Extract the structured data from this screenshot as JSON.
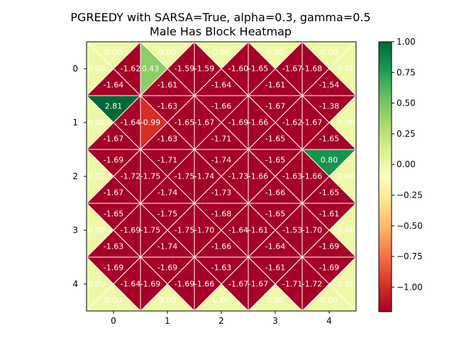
{
  "chart_data": {
    "type": "heatmap",
    "title_line1": "PGREEDY with SARSA=True, alpha=0.3, gamma=0.5",
    "title_line2": "Male Has Block Heatmap",
    "x_ticks": [
      "0",
      "1",
      "2",
      "3",
      "4"
    ],
    "y_ticks": [
      "0",
      "1",
      "2",
      "3",
      "4"
    ],
    "colorbar_ticks": [
      "1.00",
      "0.75",
      "0.50",
      "0.25",
      "0.00",
      "−0.25",
      "−0.50",
      "−0.75",
      "−1.00"
    ],
    "colorbar_values": [
      1.0,
      0.75,
      0.5,
      0.25,
      0.0,
      -0.25,
      -0.5,
      -0.75,
      -1.0
    ],
    "color_range": [
      -1.2,
      1.0
    ],
    "colormap": "RdYlGn",
    "cells": [
      {
        "row": 0,
        "col": 0,
        "top": "0.00",
        "right": "-1.62",
        "bottom": "-1.64",
        "left": "0.00"
      },
      {
        "row": 0,
        "col": 1,
        "top": "0.00",
        "right": "-1.59",
        "bottom": "-1.61",
        "left": "0.43"
      },
      {
        "row": 0,
        "col": 2,
        "top": "0.00",
        "right": "-1.60",
        "bottom": "-1.64",
        "left": "-1.59"
      },
      {
        "row": 0,
        "col": 3,
        "top": "0.00",
        "right": "-1.67",
        "bottom": "-1.61",
        "left": "-1.65"
      },
      {
        "row": 0,
        "col": 4,
        "top": "0.00",
        "right": "0.00",
        "bottom": "-1.54",
        "left": "-1.68"
      },
      {
        "row": 1,
        "col": 0,
        "top": "2.81",
        "right": "-1.64",
        "bottom": "-1.67",
        "left": "0.00"
      },
      {
        "row": 1,
        "col": 1,
        "top": "-1.63",
        "right": "-1.65",
        "bottom": "-1.63",
        "left": "-0.99"
      },
      {
        "row": 1,
        "col": 2,
        "top": "-1.66",
        "right": "-1.69",
        "bottom": "-1.71",
        "left": "-1.67"
      },
      {
        "row": 1,
        "col": 3,
        "top": "-1.67",
        "right": "-1.62",
        "bottom": "-1.65",
        "left": "-1.66"
      },
      {
        "row": 1,
        "col": 4,
        "top": "-1.38",
        "right": "0.00",
        "bottom": "-1.65",
        "left": "-1.67"
      },
      {
        "row": 2,
        "col": 0,
        "top": "-1.69",
        "right": "-1.72",
        "bottom": "-1.67",
        "left": "0.00"
      },
      {
        "row": 2,
        "col": 1,
        "top": "-1.71",
        "right": "-1.75",
        "bottom": "-1.74",
        "left": "-1.75"
      },
      {
        "row": 2,
        "col": 2,
        "top": "-1.74",
        "right": "-1.73",
        "bottom": "-1.73",
        "left": "-1.74"
      },
      {
        "row": 2,
        "col": 3,
        "top": "-1.65",
        "right": "-1.63",
        "bottom": "-1.66",
        "left": "-1.66"
      },
      {
        "row": 2,
        "col": 4,
        "top": "0.80",
        "right": "0.00",
        "bottom": "-1.65",
        "left": "-1.66"
      },
      {
        "row": 3,
        "col": 0,
        "top": "-1.65",
        "right": "-1.69",
        "bottom": "-1.63",
        "left": "0.00"
      },
      {
        "row": 3,
        "col": 1,
        "top": "-1.75",
        "right": "-1.75",
        "bottom": "-1.74",
        "left": "-1.75"
      },
      {
        "row": 3,
        "col": 2,
        "top": "-1.68",
        "right": "-1.64",
        "bottom": "-1.66",
        "left": "-1.70"
      },
      {
        "row": 3,
        "col": 3,
        "top": "-1.65",
        "right": "-1.53",
        "bottom": "-1.64",
        "left": "-1.61"
      },
      {
        "row": 3,
        "col": 4,
        "top": "-1.61",
        "right": "0.00",
        "bottom": "-1.69",
        "left": "-1.70"
      },
      {
        "row": 4,
        "col": 0,
        "top": "-1.69",
        "right": "-1.64",
        "bottom": "0.00",
        "left": "0.00"
      },
      {
        "row": 4,
        "col": 1,
        "top": "-1.69",
        "right": "-1.69",
        "bottom": "0.00",
        "left": "-1.69"
      },
      {
        "row": 4,
        "col": 2,
        "top": "-1.63",
        "right": "-1.67",
        "bottom": "0.00",
        "left": "-1.66"
      },
      {
        "row": 4,
        "col": 3,
        "top": "-1.61",
        "right": "-1.71",
        "bottom": "0.00",
        "left": "-1.67"
      },
      {
        "row": 4,
        "col": 4,
        "top": "-1.69",
        "right": "0.00",
        "bottom": "0.00",
        "left": "-1.72"
      }
    ]
  }
}
